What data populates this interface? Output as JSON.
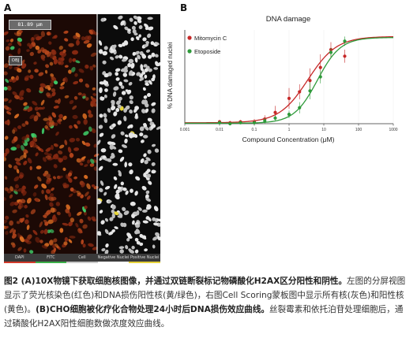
{
  "panel_a": {
    "label": "A",
    "scale_text": "81.89 μm",
    "view_label": "OBJ",
    "legend": [
      {
        "label": "DAPI",
        "color": "#d23a2a"
      },
      {
        "label": "FITC",
        "color": "#3cb04a"
      },
      {
        "label": "Cell",
        "color": "#c8c8c8"
      },
      {
        "label": "Negative Nuclei",
        "color": "#ffffff"
      },
      {
        "label": "Positive Nuclei",
        "color": "#e6d23a"
      }
    ]
  },
  "panel_b": {
    "label": "B"
  },
  "chart_data": {
    "type": "scatter",
    "title": "DNA damage",
    "xlabel": "Compound Concentration (μM)",
    "ylabel": "% DNA damaged nuclei",
    "xscale": "log",
    "xlim": [
      0.001,
      1000
    ],
    "ylim": [
      0,
      100
    ],
    "x_tick_labels": [
      "0.001",
      "0.01",
      "0.1",
      "1",
      "10",
      "100",
      "1000"
    ],
    "legend_position": "top-left",
    "series": [
      {
        "name": "Mitomycin C",
        "color": "#c62828",
        "x": [
          0.01,
          0.02,
          0.04,
          0.1,
          0.2,
          0.4,
          1,
          2,
          4,
          8,
          16,
          40
        ],
        "y": [
          2,
          1,
          2,
          2,
          5,
          12,
          27,
          34,
          46,
          60,
          79,
          72
        ],
        "err": [
          2,
          2,
          2,
          3,
          4,
          7,
          11,
          8,
          13,
          14,
          8,
          7
        ],
        "fit": {
          "bottom": 1,
          "top": 93,
          "ec50": 3.5,
          "hill": 1.05
        }
      },
      {
        "name": "Etoposide",
        "color": "#2e9a3a",
        "x": [
          0.01,
          0.02,
          0.04,
          0.1,
          0.2,
          0.4,
          1,
          2,
          4,
          8,
          16,
          40
        ],
        "y": [
          1,
          0,
          1,
          1,
          3,
          6,
          10,
          17,
          35,
          50,
          76,
          88
        ],
        "err": [
          1,
          1,
          1,
          2,
          3,
          3,
          4,
          6,
          9,
          7,
          5,
          5
        ],
        "fit": {
          "bottom": 0.5,
          "top": 92,
          "ec50": 6.5,
          "hill": 1.3
        }
      }
    ]
  },
  "caption": {
    "bold": "图2 (A)10X物镜下获取细胞核图像，并通过双链断裂标记物磷酸化H2AX区分阳性和阴性。",
    "text1": "左图的分屏视图显示了荧光核染色(红色)和DNA损伤阳性核(黄/绿色)，右图Cell Scoring蒙板图中显示所有核(灰色)和阳性核(黄色)。",
    "bold2": "(B)CHO细胞被化疗化合物处理24小时后DNA损伤效应曲线。",
    "text2": "丝裂霉素和依托泊苷处理细胞后，通过磷酸化H2AX阳性细胞数做浓度效应曲线。"
  }
}
